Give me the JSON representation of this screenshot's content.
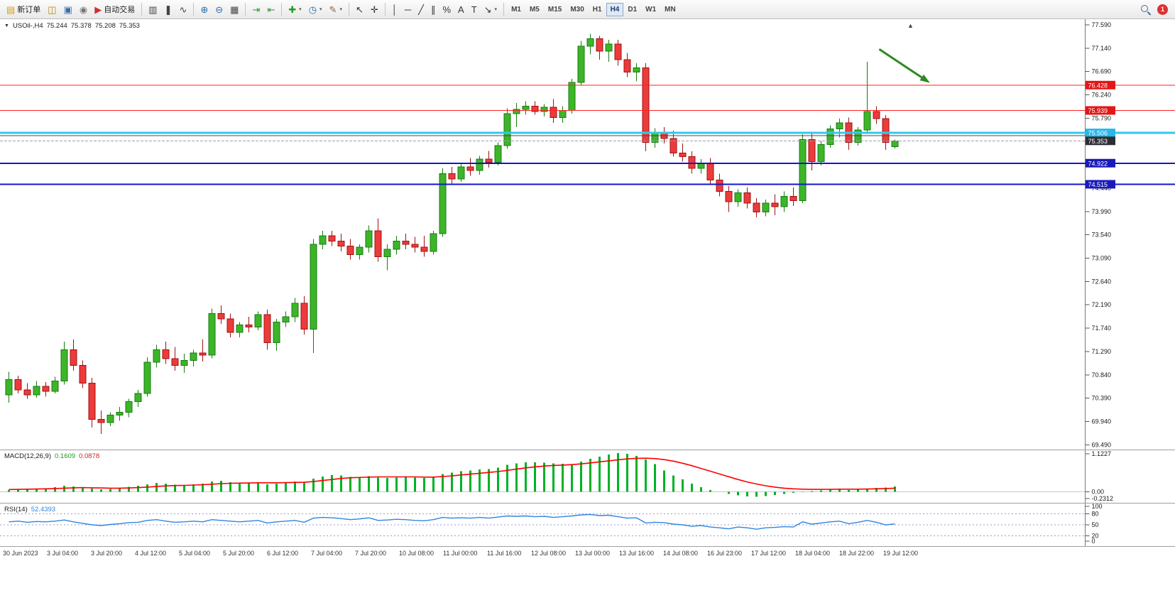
{
  "toolbar": {
    "items": [
      {
        "name": "new-order-button",
        "glyph": "▤",
        "glyph_color": "#d4a017",
        "label": "新订单"
      },
      {
        "name": "chart-window-button",
        "glyph": "◫",
        "glyph_color": "#b8860b"
      },
      {
        "name": "profiles-button",
        "glyph": "▣",
        "glyph_color": "#3a6ea5"
      },
      {
        "name": "refresh-button",
        "glyph": "◉",
        "glyph_color": "#777777"
      },
      {
        "name": "auto-trading-button",
        "glyph": "▶",
        "glyph_color": "#cc3333",
        "label": "自动交易"
      },
      {
        "type": "sep"
      },
      {
        "name": "bar-chart-button",
        "glyph": "▥",
        "glyph_color": "#444444"
      },
      {
        "name": "candlestick-chart-button",
        "glyph": "❚",
        "glyph_color": "#444444"
      },
      {
        "name": "line-chart-button",
        "glyph": "∿",
        "glyph_color": "#444444"
      },
      {
        "type": "sep"
      },
      {
        "name": "zoom-in-button",
        "glyph": "⊕",
        "glyph_color": "#2b6cb0"
      },
      {
        "name": "zoom-out-button",
        "glyph": "⊖",
        "glyph_color": "#2b6cb0"
      },
      {
        "name": "grid-button",
        "glyph": "▦",
        "glyph_color": "#444444"
      },
      {
        "type": "sep"
      },
      {
        "name": "auto-scroll-button",
        "glyph": "⇥",
        "glyph_color": "#2f9e2f"
      },
      {
        "name": "chart-shift-button",
        "glyph": "⇤",
        "glyph_color": "#2f9e2f"
      },
      {
        "type": "sep"
      },
      {
        "name": "add-indicator-button",
        "glyph": "✚",
        "glyph_color": "#1f9e1f",
        "caret": true
      },
      {
        "name": "periods-button",
        "glyph": "◷",
        "glyph_color": "#2b6cb0",
        "caret": true
      },
      {
        "name": "templates-button",
        "glyph": "✎",
        "glyph_color": "#8a6d3b",
        "caret": true
      },
      {
        "type": "sep"
      },
      {
        "name": "cursor-button",
        "glyph": "↖",
        "glyph_color": "#333333"
      },
      {
        "name": "crosshair-button",
        "glyph": "✛",
        "glyph_color": "#333333"
      },
      {
        "type": "sep"
      },
      {
        "name": "vertical-line-button",
        "glyph": "│",
        "glyph_color": "#333333"
      },
      {
        "name": "horizontal-line-button",
        "glyph": "─",
        "glyph_color": "#333333"
      },
      {
        "name": "trendline-button",
        "glyph": "╱",
        "glyph_color": "#333333"
      },
      {
        "name": "channel-button",
        "glyph": "∥",
        "glyph_color": "#333333"
      },
      {
        "name": "fibonacci-button",
        "glyph": "%",
        "glyph_color": "#333333"
      },
      {
        "name": "text-button",
        "glyph": "A",
        "glyph_color": "#333333"
      },
      {
        "name": "label-button",
        "glyph": "T",
        "glyph_color": "#333333"
      },
      {
        "name": "arrows-button",
        "glyph": "↘",
        "glyph_color": "#333333",
        "caret": true
      },
      {
        "type": "sep"
      }
    ],
    "timeframes": {
      "options": [
        "M1",
        "M5",
        "M15",
        "M30",
        "H1",
        "H4",
        "D1",
        "W1",
        "MN"
      ],
      "active": "H4"
    },
    "notification_count": "1"
  },
  "chart": {
    "dropdown_glyph": "▼",
    "symbol_label": "USOil-,H4",
    "open": "75.244",
    "high": "75.378",
    "low": "75.208",
    "close": "75.353"
  },
  "chart_data": {
    "type": "candlestick",
    "symbol": "USOil-",
    "timeframe": "H4",
    "colors": {
      "bull": "#3db529",
      "bull_edge": "#167d10",
      "bear": "#ec3b3b",
      "bear_edge": "#a01212",
      "macd_bar": "#00b226",
      "macd_signal": "#ff0000",
      "rsi_line": "#2e86e0"
    },
    "price_axis": {
      "ticks": [
        "77.590",
        "77.140",
        "76.690",
        "76.240",
        "75.790",
        "75.340",
        "74.890",
        "74.440",
        "73.990",
        "73.540",
        "73.090",
        "72.640",
        "72.190",
        "71.740",
        "71.290",
        "70.840",
        "70.390",
        "69.940",
        "69.490"
      ]
    },
    "levels": [
      {
        "label": "76.428",
        "price": 76.428,
        "line_color": "#ff2222",
        "line_width": 1,
        "badge_color": "#e21717",
        "extend_full": true
      },
      {
        "label": "75.939",
        "price": 75.939,
        "line_color": "#ff2222",
        "line_width": 1,
        "badge_color": "#e21717",
        "extend_full": true
      },
      {
        "label": "75.506",
        "price": 75.506,
        "line_color": "#35c7ec",
        "line_width": 3,
        "badge_color": "#29b6e8",
        "extend_full": true
      },
      {
        "label": null,
        "price": 75.452,
        "line_color": "#4a4a4a",
        "line_width": 1,
        "extend_full": false
      },
      {
        "label": "75.353",
        "price": 75.353,
        "line_color": "#9aa0a6",
        "line_width": 1,
        "badge_color": "#2d2d35",
        "extend_full": false,
        "current": true
      },
      {
        "label": "74.922",
        "price": 74.922,
        "line_color": "#1515cc",
        "line_width": 2,
        "badge_color": "#1a1ab8",
        "extend_full": true
      },
      {
        "label": "74.515",
        "price": 74.515,
        "line_color": "#1515cc",
        "line_width": 2,
        "badge_color": "#1a1ab8",
        "extend_full": true
      }
    ],
    "candles": [
      [
        70.45,
        70.9,
        70.3,
        70.75
      ],
      [
        70.75,
        70.82,
        70.48,
        70.55
      ],
      [
        70.55,
        70.68,
        70.38,
        70.45
      ],
      [
        70.45,
        70.72,
        70.4,
        70.62
      ],
      [
        70.62,
        70.7,
        70.42,
        70.52
      ],
      [
        70.52,
        70.8,
        70.48,
        70.72
      ],
      [
        70.72,
        71.48,
        70.65,
        71.32
      ],
      [
        71.32,
        71.52,
        70.92,
        71.02
      ],
      [
        71.02,
        71.12,
        70.58,
        70.68
      ],
      [
        70.68,
        70.78,
        69.82,
        69.98
      ],
      [
        69.98,
        70.15,
        69.7,
        69.92
      ],
      [
        69.92,
        70.12,
        69.85,
        70.06
      ],
      [
        70.06,
        70.22,
        69.95,
        70.12
      ],
      [
        70.12,
        70.38,
        70.02,
        70.32
      ],
      [
        70.32,
        70.55,
        70.22,
        70.48
      ],
      [
        70.48,
        71.18,
        70.42,
        71.08
      ],
      [
        71.08,
        71.42,
        70.98,
        71.32
      ],
      [
        71.32,
        71.48,
        71.05,
        71.15
      ],
      [
        71.15,
        71.38,
        70.92,
        71.02
      ],
      [
        71.02,
        71.25,
        70.88,
        71.12
      ],
      [
        71.12,
        71.32,
        71.0,
        71.26
      ],
      [
        71.26,
        71.52,
        71.1,
        71.22
      ],
      [
        71.22,
        72.12,
        71.16,
        72.02
      ],
      [
        72.02,
        72.18,
        71.82,
        71.92
      ],
      [
        71.92,
        72.02,
        71.56,
        71.66
      ],
      [
        71.66,
        71.86,
        71.56,
        71.8
      ],
      [
        71.8,
        71.96,
        71.66,
        71.76
      ],
      [
        71.76,
        72.06,
        71.7,
        72.0
      ],
      [
        72.0,
        72.1,
        71.32,
        71.46
      ],
      [
        71.46,
        71.92,
        71.3,
        71.86
      ],
      [
        71.86,
        72.06,
        71.76,
        71.96
      ],
      [
        71.96,
        72.32,
        71.86,
        72.22
      ],
      [
        72.22,
        72.36,
        71.62,
        71.72
      ],
      [
        71.72,
        73.46,
        71.26,
        73.36
      ],
      [
        73.36,
        73.62,
        73.26,
        73.52
      ],
      [
        73.52,
        73.62,
        73.32,
        73.42
      ],
      [
        73.42,
        73.56,
        73.22,
        73.32
      ],
      [
        73.32,
        73.46,
        73.06,
        73.16
      ],
      [
        73.16,
        73.36,
        73.06,
        73.3
      ],
      [
        73.3,
        73.72,
        73.2,
        73.62
      ],
      [
        73.62,
        73.86,
        73.02,
        73.12
      ],
      [
        73.12,
        73.36,
        72.86,
        73.26
      ],
      [
        73.26,
        73.52,
        73.16,
        73.42
      ],
      [
        73.42,
        73.56,
        73.26,
        73.36
      ],
      [
        73.36,
        73.5,
        73.2,
        73.3
      ],
      [
        73.3,
        73.52,
        73.12,
        73.22
      ],
      [
        73.22,
        73.62,
        73.16,
        73.56
      ],
      [
        73.56,
        74.82,
        73.5,
        74.72
      ],
      [
        74.72,
        74.85,
        74.52,
        74.62
      ],
      [
        74.62,
        74.92,
        74.56,
        74.85
      ],
      [
        74.85,
        75.02,
        74.68,
        74.78
      ],
      [
        74.78,
        75.06,
        74.7,
        75.0
      ],
      [
        75.0,
        75.16,
        74.84,
        74.94
      ],
      [
        74.94,
        75.32,
        74.88,
        75.26
      ],
      [
        75.26,
        75.98,
        75.2,
        75.88
      ],
      [
        75.88,
        76.08,
        75.62,
        75.96
      ],
      [
        75.96,
        76.12,
        75.86,
        76.02
      ],
      [
        76.02,
        76.12,
        75.86,
        75.92
      ],
      [
        75.92,
        76.06,
        75.82,
        76.0
      ],
      [
        76.0,
        76.16,
        75.7,
        75.8
      ],
      [
        75.8,
        76.02,
        75.7,
        75.94
      ],
      [
        75.94,
        76.55,
        75.88,
        76.48
      ],
      [
        76.48,
        77.28,
        76.42,
        77.18
      ],
      [
        77.18,
        77.42,
        77.02,
        77.32
      ],
      [
        77.32,
        77.38,
        76.92,
        77.08
      ],
      [
        77.08,
        77.3,
        76.88,
        77.22
      ],
      [
        77.22,
        77.3,
        76.8,
        76.92
      ],
      [
        76.92,
        77.05,
        76.58,
        76.68
      ],
      [
        76.68,
        76.85,
        76.5,
        76.76
      ],
      [
        76.76,
        76.85,
        75.15,
        75.32
      ],
      [
        75.32,
        75.6,
        75.22,
        75.52
      ],
      [
        75.52,
        75.62,
        75.3,
        75.4
      ],
      [
        75.4,
        75.55,
        75.05,
        75.12
      ],
      [
        75.12,
        75.3,
        74.95,
        75.05
      ],
      [
        75.05,
        75.15,
        74.72,
        74.82
      ],
      [
        74.82,
        75.0,
        74.72,
        74.92
      ],
      [
        74.92,
        75.02,
        74.5,
        74.6
      ],
      [
        74.6,
        74.72,
        74.28,
        74.38
      ],
      [
        74.38,
        74.48,
        73.98,
        74.18
      ],
      [
        74.18,
        74.42,
        74.08,
        74.35
      ],
      [
        74.35,
        74.45,
        74.05,
        74.15
      ],
      [
        74.15,
        74.25,
        73.88,
        73.98
      ],
      [
        73.98,
        74.22,
        73.9,
        74.15
      ],
      [
        74.15,
        74.32,
        73.92,
        74.08
      ],
      [
        74.08,
        74.38,
        73.98,
        74.28
      ],
      [
        74.28,
        74.45,
        74.1,
        74.2
      ],
      [
        74.2,
        75.48,
        74.15,
        75.38
      ],
      [
        75.38,
        75.5,
        74.78,
        74.95
      ],
      [
        74.95,
        75.35,
        74.88,
        75.28
      ],
      [
        75.28,
        75.65,
        75.22,
        75.58
      ],
      [
        75.58,
        75.78,
        75.42,
        75.7
      ],
      [
        75.7,
        75.8,
        75.18,
        75.32
      ],
      [
        75.32,
        75.62,
        75.26,
        75.56
      ],
      [
        75.56,
        76.88,
        75.5,
        75.92
      ],
      [
        75.92,
        76.02,
        75.68,
        75.78
      ],
      [
        75.78,
        75.85,
        75.18,
        75.32
      ],
      [
        75.244,
        75.378,
        75.208,
        75.353
      ]
    ],
    "annotation_arrow": {
      "from_index": 94.3,
      "from_price": 77.12,
      "to_index": 99.8,
      "to_price": 76.47,
      "color": "#2e8b22"
    },
    "shift_marker_glyph": "▲",
    "time_labels": [
      "30 Jun 2023",
      "3 Jul 04:00",
      "3 Jul 20:00",
      "4 Jul 12:00",
      "5 Jul 04:00",
      "5 Jul 20:00",
      "6 Jul 12:00",
      "7 Jul 04:00",
      "7 Jul 20:00",
      "10 Jul 08:00",
      "11 Jul 00:00",
      "11 Jul 16:00",
      "12 Jul 08:00",
      "13 Jul 00:00",
      "13 Jul 16:00",
      "14 Jul 08:00",
      "16 Jul 23:00",
      "17 Jul 12:00",
      "18 Jul 04:00",
      "18 Jul 22:00",
      "19 Jul 12:00"
    ],
    "macd": {
      "name": "MACD(12,26,9)",
      "value_main": "0.1609",
      "value_signal": "0.0878",
      "max_label": "1.1227",
      "zero_label": "0.00",
      "min_label": "-0.2312",
      "range": [
        -0.2312,
        1.1227
      ],
      "histogram": [
        0.06,
        0.08,
        0.1,
        0.09,
        0.11,
        0.14,
        0.18,
        0.16,
        0.13,
        0.1,
        0.08,
        0.09,
        0.12,
        0.15,
        0.18,
        0.22,
        0.26,
        0.24,
        0.21,
        0.2,
        0.22,
        0.24,
        0.3,
        0.32,
        0.28,
        0.26,
        0.25,
        0.27,
        0.22,
        0.24,
        0.26,
        0.3,
        0.27,
        0.38,
        0.45,
        0.49,
        0.48,
        0.44,
        0.43,
        0.46,
        0.42,
        0.4,
        0.42,
        0.43,
        0.41,
        0.4,
        0.42,
        0.52,
        0.56,
        0.6,
        0.62,
        0.65,
        0.66,
        0.7,
        0.78,
        0.83,
        0.86,
        0.86,
        0.85,
        0.83,
        0.82,
        0.8,
        0.88,
        0.96,
        1.02,
        1.08,
        1.12,
        1.1,
        1.04,
        0.94,
        0.8,
        0.62,
        0.48,
        0.36,
        0.24,
        0.14,
        0.06,
        0.0,
        -0.06,
        -0.1,
        -0.13,
        -0.14,
        -0.12,
        -0.09,
        -0.06,
        -0.03,
        0.01,
        0.03,
        0.05,
        0.07,
        0.08,
        0.06,
        0.08,
        0.1,
        0.12,
        0.13,
        0.16
      ],
      "signal": [
        0.07,
        0.075,
        0.08,
        0.085,
        0.09,
        0.1,
        0.11,
        0.12,
        0.125,
        0.12,
        0.115,
        0.11,
        0.11,
        0.115,
        0.125,
        0.14,
        0.16,
        0.175,
        0.185,
        0.19,
        0.2,
        0.21,
        0.225,
        0.24,
        0.25,
        0.255,
        0.26,
        0.265,
        0.265,
        0.265,
        0.27,
        0.275,
        0.28,
        0.3,
        0.33,
        0.36,
        0.39,
        0.41,
        0.42,
        0.43,
        0.435,
        0.435,
        0.435,
        0.435,
        0.435,
        0.43,
        0.43,
        0.445,
        0.465,
        0.49,
        0.515,
        0.54,
        0.565,
        0.59,
        0.625,
        0.66,
        0.695,
        0.725,
        0.75,
        0.765,
        0.775,
        0.79,
        0.81,
        0.84,
        0.87,
        0.9,
        0.93,
        0.955,
        0.97,
        0.975,
        0.965,
        0.935,
        0.89,
        0.83,
        0.76,
        0.68,
        0.6,
        0.52,
        0.44,
        0.36,
        0.29,
        0.23,
        0.18,
        0.14,
        0.11,
        0.09,
        0.08,
        0.075,
        0.075,
        0.075,
        0.08,
        0.08,
        0.08,
        0.085,
        0.09,
        0.1,
        0.11
      ]
    },
    "rsi": {
      "name": "RSI(14)",
      "value": "52.4393",
      "range": [
        0,
        100
      ],
      "levels": [
        80,
        50,
        20
      ],
      "axis_labels": [
        "100",
        "80",
        "50",
        "20",
        "0"
      ],
      "values": [
        58,
        60,
        57,
        59,
        58,
        60,
        63,
        58,
        54,
        50,
        48,
        51,
        53,
        56,
        57,
        62,
        64,
        60,
        57,
        58,
        60,
        58,
        64,
        62,
        60,
        58,
        60,
        62,
        55,
        58,
        60,
        62,
        57,
        68,
        70,
        69,
        67,
        64,
        66,
        69,
        62,
        63,
        65,
        64,
        62,
        61,
        64,
        70,
        68,
        69,
        68,
        70,
        68,
        71,
        74,
        73,
        74,
        72,
        73,
        70,
        72,
        74,
        77,
        78,
        75,
        76,
        72,
        68,
        69,
        55,
        57,
        56,
        52,
        50,
        46,
        48,
        44,
        42,
        39,
        44,
        42,
        38,
        42,
        43,
        45,
        44,
        58,
        52,
        55,
        58,
        60,
        53,
        57,
        62,
        57,
        50,
        52.44
      ]
    }
  }
}
